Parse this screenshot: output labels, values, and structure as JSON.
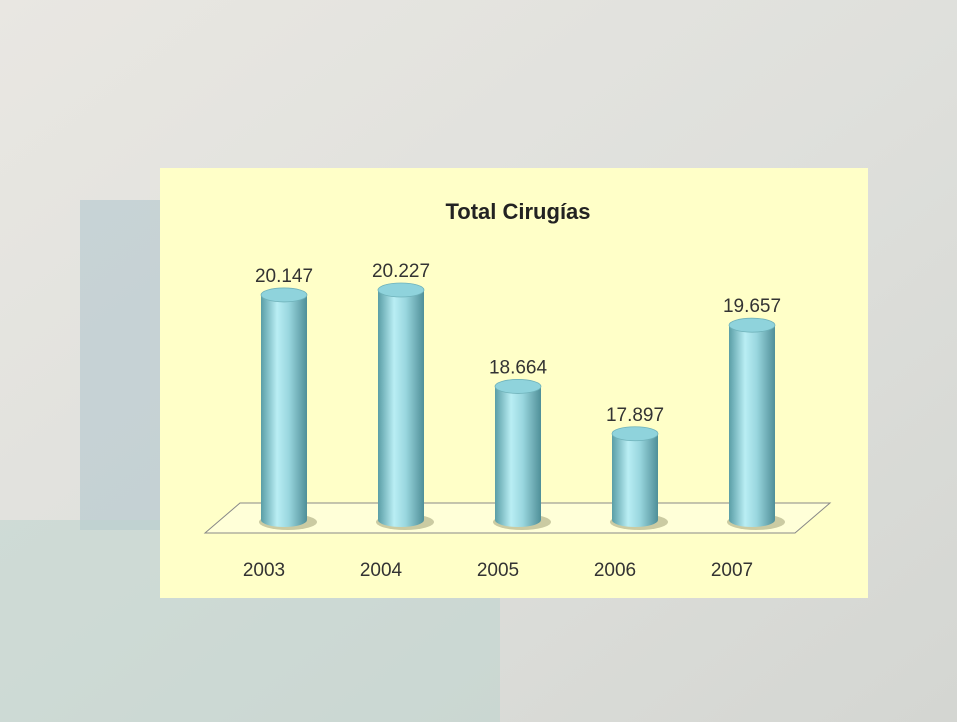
{
  "chart_data": {
    "type": "bar",
    "title": "Total  Cirugías",
    "categories": [
      "2003",
      "2004",
      "2005",
      "2006",
      "2007"
    ],
    "values": [
      20147,
      20227,
      18664,
      17897,
      19657
    ],
    "value_labels": [
      "20.147",
      "20.227",
      "18.664",
      "17.897",
      "19.657"
    ],
    "color": "#8fd3dc"
  }
}
